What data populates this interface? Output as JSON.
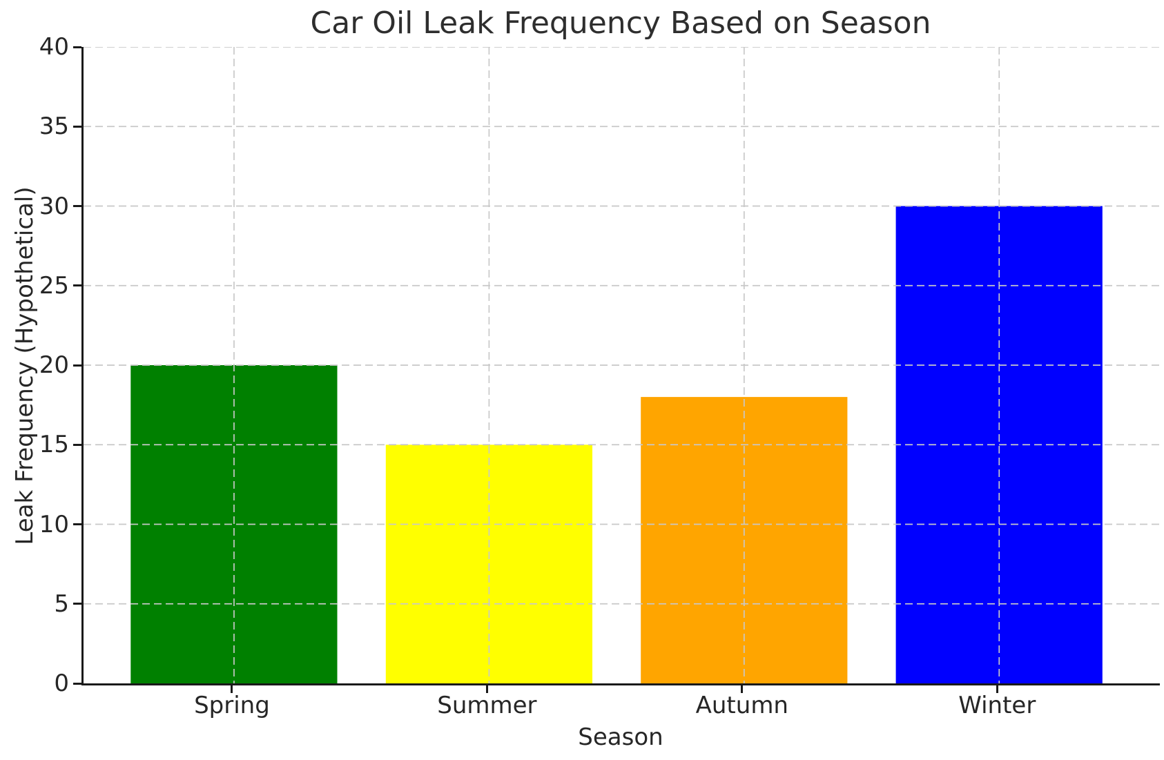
{
  "figure": {
    "background": "#ffffff"
  },
  "chart_data": {
    "type": "bar",
    "title": "Car Oil Leak Frequency Based on Season",
    "xlabel": "Season",
    "ylabel": "Leak Frequency (Hypothetical)",
    "categories": [
      "Spring",
      "Summer",
      "Autumn",
      "Winter"
    ],
    "values": [
      20,
      15,
      18,
      30
    ],
    "bar_colors": [
      "#008000",
      "#ffff00",
      "#ffa500",
      "#0000ff"
    ],
    "bar_color_names": [
      "green",
      "yellow",
      "orange",
      "blue"
    ],
    "ylim": [
      0,
      40
    ],
    "yticks": [
      0,
      5,
      10,
      15,
      20,
      25,
      30,
      35,
      40
    ],
    "xlim": [
      -0.59,
      3.63
    ],
    "bar_width": 0.81,
    "grid": {
      "visible": true,
      "style": "dashed",
      "axes": "both",
      "above_bars": true
    },
    "legend": "none",
    "style": {
      "grid_color": "#c8c8c8",
      "spine_color": "#1a1a1a",
      "text_color": "#262626",
      "title_color": "#2e2e2e",
      "bar_edge": "none"
    }
  }
}
